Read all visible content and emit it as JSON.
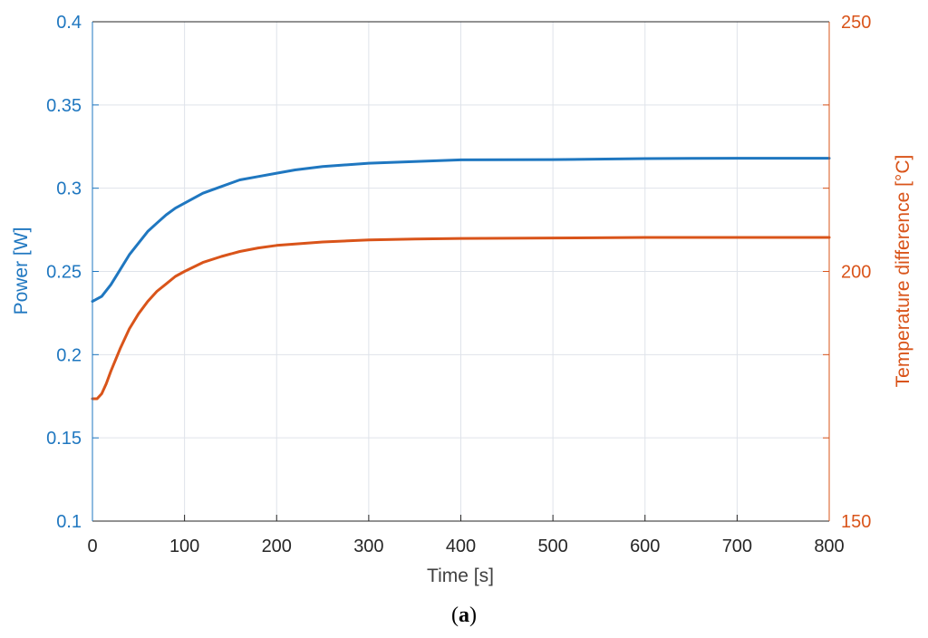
{
  "chart_data": {
    "type": "line",
    "xlabel": "Time [s]",
    "xlim": [
      0,
      800
    ],
    "xticks": [
      0,
      100,
      200,
      300,
      400,
      500,
      600,
      700,
      800
    ],
    "y_left": {
      "label": "Power [W]",
      "lim": [
        0.1,
        0.4
      ],
      "ticks": [
        "0.1",
        "0.15",
        "0.2",
        "0.25",
        "0.3",
        "0.35",
        "0.4"
      ],
      "color": "#1f77c0"
    },
    "y_right": {
      "label": "Temperature difference [°C]",
      "lim": [
        150,
        250
      ],
      "ticks": [
        "150",
        "200",
        "250"
      ],
      "color": "#d9541a"
    },
    "grid": true,
    "series": [
      {
        "axis": "left",
        "color": "#1f77c0",
        "x": [
          0,
          10,
          20,
          30,
          40,
          50,
          60,
          70,
          80,
          90,
          100,
          120,
          140,
          160,
          180,
          200,
          220,
          250,
          300,
          350,
          400,
          500,
          600,
          700,
          800
        ],
        "y": [
          0.232,
          0.235,
          0.242,
          0.251,
          0.26,
          0.267,
          0.274,
          0.279,
          0.284,
          0.288,
          0.291,
          0.297,
          0.301,
          0.305,
          0.307,
          0.309,
          0.311,
          0.313,
          0.315,
          0.316,
          0.317,
          0.3172,
          0.3178,
          0.318,
          0.318
        ]
      },
      {
        "axis": "right",
        "color": "#d9541a",
        "x": [
          0,
          5,
          10,
          15,
          20,
          30,
          40,
          50,
          60,
          70,
          80,
          90,
          100,
          120,
          140,
          160,
          180,
          200,
          250,
          300,
          350,
          400,
          500,
          600,
          700,
          800
        ],
        "y": [
          174.5,
          174.5,
          175.5,
          177.5,
          180.0,
          184.5,
          188.5,
          191.5,
          194.0,
          196.0,
          197.5,
          199.0,
          200.0,
          201.8,
          203.0,
          204.0,
          204.7,
          205.2,
          205.9,
          206.3,
          206.5,
          206.6,
          206.7,
          206.8,
          206.8,
          206.8
        ]
      }
    ]
  },
  "caption": {
    "open": "(",
    "letter": "a",
    "close": ")"
  }
}
